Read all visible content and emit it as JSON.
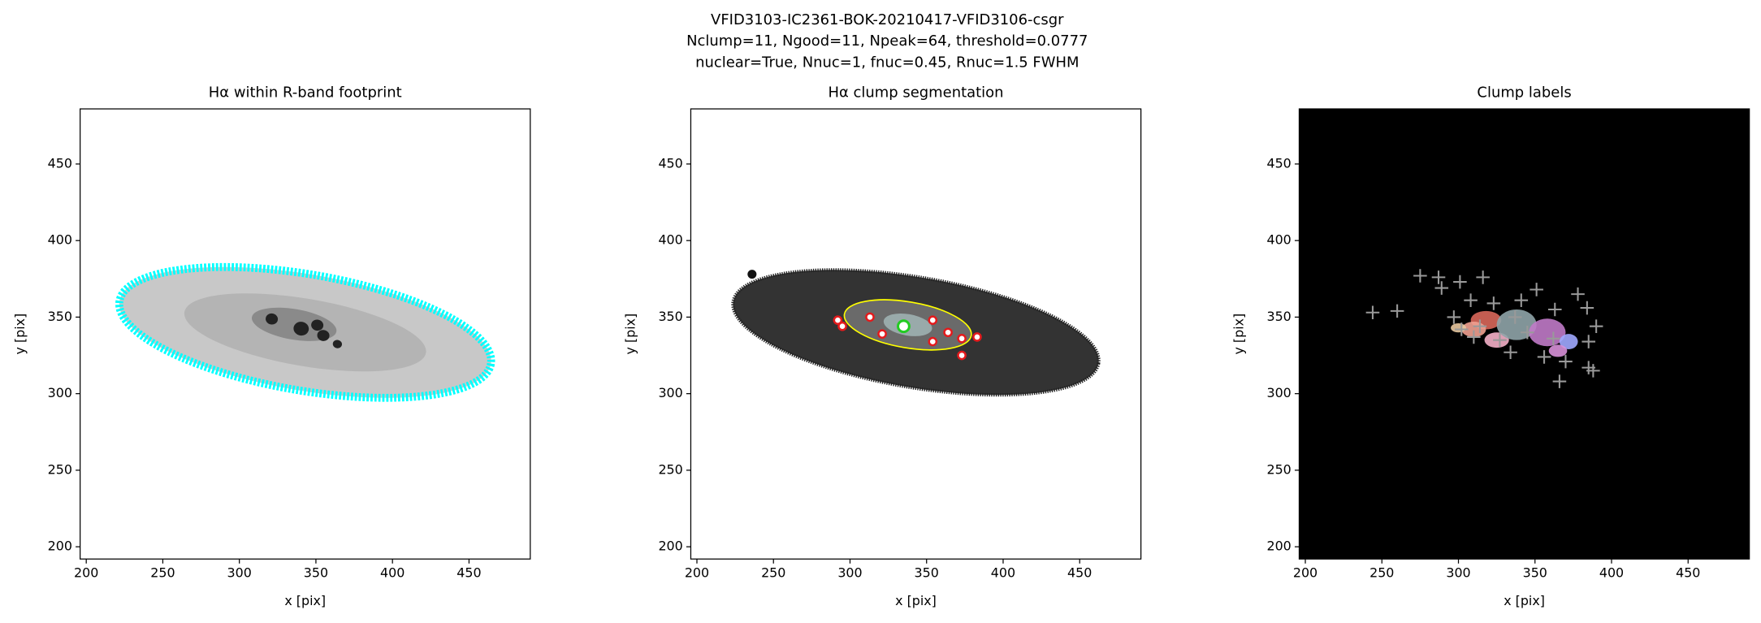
{
  "figure": {
    "title_lines": [
      "VFID3103-IC2361-BOK-20210417-VFID3106-csgr",
      "Nclump=11, Ngood=11, Npeak=64, threshold=0.0777",
      "nuclear=True, Nnuc=1, fnuc=0.45, Rnuc=1.5 FWHM"
    ]
  },
  "chart_data": [
    {
      "type": "image",
      "title": "Hα within R-band footprint",
      "xlabel": "x [pix]",
      "ylabel": "y [pix]",
      "xlim": [
        196,
        490
      ],
      "ylim": [
        192,
        486
      ],
      "xticks": [
        200,
        250,
        300,
        350,
        400,
        450
      ],
      "yticks": [
        200,
        250,
        300,
        350,
        400,
        450
      ]
    },
    {
      "type": "image",
      "title": "Hα clump segmentation",
      "xlabel": "x [pix]",
      "ylabel": "y [pix]",
      "xlim": [
        196,
        490
      ],
      "ylim": [
        192,
        486
      ],
      "xticks": [
        200,
        250,
        300,
        350,
        400,
        450
      ],
      "yticks": [
        200,
        250,
        300,
        350,
        400,
        450
      ],
      "clumps": {
        "x": [
          292,
          295,
          313,
          321,
          354,
          364,
          354,
          373,
          373,
          383
        ],
        "y": [
          348,
          344,
          350,
          339,
          348,
          340,
          334,
          336,
          325,
          337
        ],
        "color": "#e41a1c"
      },
      "nucleus": {
        "x": [
          335
        ],
        "y": [
          344
        ],
        "color": "#22cc22"
      }
    },
    {
      "type": "image",
      "title": "Clump labels",
      "xlabel": "x [pix]",
      "ylabel": "y [pix]",
      "xlim": [
        196,
        490
      ],
      "ylim": [
        192,
        486
      ],
      "xticks": [
        200,
        250,
        300,
        350,
        400,
        450
      ],
      "yticks": [
        200,
        250,
        300,
        350,
        400,
        450
      ],
      "peaks": {
        "x": [
          244,
          260,
          275,
          287,
          289,
          301,
          316,
          297,
          308,
          323,
          310,
          327,
          334,
          341,
          351,
          363,
          378,
          384,
          390,
          362,
          370,
          366,
          385,
          388,
          385,
          345,
          314,
          302,
          337,
          356
        ],
        "y": [
          353,
          354,
          377,
          376,
          369,
          373,
          376,
          350,
          361,
          359,
          337,
          335,
          327,
          361,
          368,
          355,
          365,
          356,
          344,
          336,
          321,
          308,
          317,
          315,
          334,
          340,
          344,
          342,
          350,
          324
        ],
        "color": "#999999"
      }
    }
  ]
}
